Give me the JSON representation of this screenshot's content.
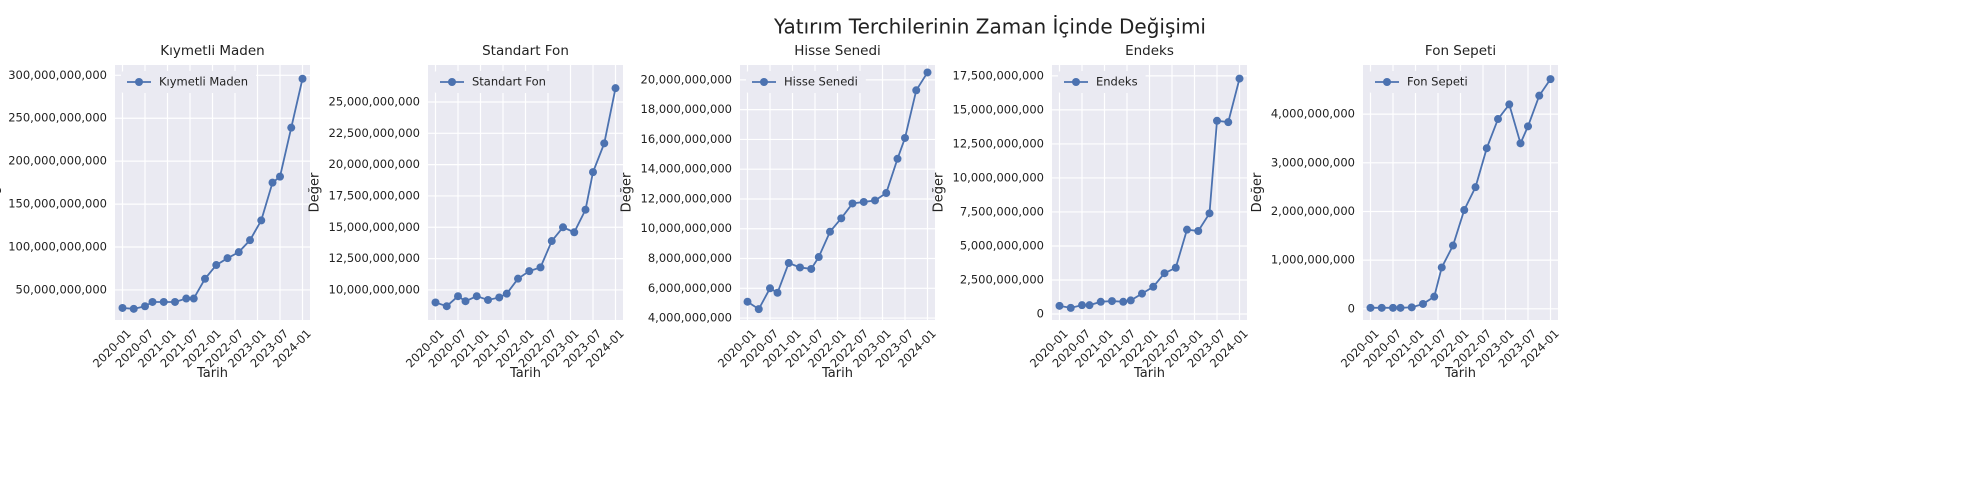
{
  "title": "Yatırım Terchilerinin Zaman İçinde Değişimi",
  "chart_data": [
    {
      "type": "line",
      "title": "Kıymetli Maden",
      "xlabel": "Tarih",
      "ylabel": "Değer",
      "legend": "upper left",
      "grid": true,
      "x": [
        "2020-01",
        "2020-04",
        "2020-07",
        "2020-09",
        "2020-12",
        "2021-03",
        "2021-06",
        "2021-08",
        "2021-11",
        "2022-02",
        "2022-05",
        "2022-08",
        "2022-11",
        "2023-02",
        "2023-05",
        "2023-07",
        "2023-10",
        "2024-01"
      ],
      "xlim": [
        "2019-11",
        "2024-03"
      ],
      "xticks": [
        "2020-01",
        "2020-07",
        "2021-01",
        "2021-07",
        "2022-01",
        "2022-07",
        "2023-01",
        "2023-07",
        "2024-01"
      ],
      "ylim": [
        15000000000,
        312000000000
      ],
      "yticks": [
        {
          "value": 50000000000,
          "label": "50,000,000,000"
        },
        {
          "value": 100000000000,
          "label": "100,000,000,000"
        },
        {
          "value": 150000000000,
          "label": "150,000,000,000"
        },
        {
          "value": 200000000000,
          "label": "200,000,000,000"
        },
        {
          "value": 250000000000,
          "label": "250,000,000,000"
        },
        {
          "value": 300000000000,
          "label": "300,000,000,000"
        }
      ],
      "series": [
        {
          "name": "Kıymetli Maden",
          "color": "#4c72b0",
          "values": [
            29000000000,
            28000000000,
            31000000000,
            36000000000,
            36000000000,
            36000000000,
            40000000000,
            40000000000,
            63000000000,
            79000000000,
            87000000000,
            94000000000,
            108000000000,
            131000000000,
            175000000000,
            182000000000,
            239000000000,
            296000000000
          ]
        }
      ]
    },
    {
      "type": "line",
      "title": "Standart Fon",
      "xlabel": "Tarih",
      "ylabel": "Değer",
      "legend": "upper left",
      "grid": true,
      "x": [
        "2020-01",
        "2020-04",
        "2020-07",
        "2020-09",
        "2020-12",
        "2021-03",
        "2021-06",
        "2021-08",
        "2021-11",
        "2022-02",
        "2022-05",
        "2022-08",
        "2022-11",
        "2023-02",
        "2023-05",
        "2023-07",
        "2023-10",
        "2024-01"
      ],
      "xlim": [
        "2019-11",
        "2024-03"
      ],
      "xticks": [
        "2020-01",
        "2020-07",
        "2021-01",
        "2021-07",
        "2022-01",
        "2022-07",
        "2023-01",
        "2023-07",
        "2024-01"
      ],
      "ylim": [
        7600000000,
        27950000000
      ],
      "yticks": [
        {
          "value": 10000000000,
          "label": "10,000,000,000"
        },
        {
          "value": 12500000000,
          "label": "12,500,000,000"
        },
        {
          "value": 15000000000,
          "label": "15,000,000,000"
        },
        {
          "value": 17500000000,
          "label": "17,500,000,000"
        },
        {
          "value": 20000000000,
          "label": "20,000,000,000"
        },
        {
          "value": 22500000000,
          "label": "22,500,000,000"
        },
        {
          "value": 25000000000,
          "label": "25,000,000,000"
        }
      ],
      "series": [
        {
          "name": "Standart Fon",
          "color": "#4c72b0",
          "values": [
            9000000000,
            8700000000,
            9500000000,
            9100000000,
            9500000000,
            9200000000,
            9400000000,
            9700000000,
            10900000000,
            11500000000,
            11800000000,
            13900000000,
            15000000000,
            14600000000,
            16400000000,
            19400000000,
            21700000000,
            26100000000
          ]
        }
      ]
    },
    {
      "type": "line",
      "title": "Hisse Senedi",
      "xlabel": "Tarih",
      "ylabel": "Değer",
      "legend": "upper left",
      "grid": true,
      "x": [
        "2020-01",
        "2020-04",
        "2020-07",
        "2020-09",
        "2020-12",
        "2021-03",
        "2021-06",
        "2021-08",
        "2021-11",
        "2022-02",
        "2022-05",
        "2022-08",
        "2022-11",
        "2023-02",
        "2023-05",
        "2023-07",
        "2023-10",
        "2024-01"
      ],
      "xlim": [
        "2019-11",
        "2024-03"
      ],
      "xticks": [
        "2020-01",
        "2020-07",
        "2021-01",
        "2021-07",
        "2022-01",
        "2022-07",
        "2023-01",
        "2023-07",
        "2024-01"
      ],
      "ylim": [
        3870000000,
        21000000000
      ],
      "yticks": [
        {
          "value": 4000000000,
          "label": "4,000,000,000"
        },
        {
          "value": 6000000000,
          "label": "6,000,000,000"
        },
        {
          "value": 8000000000,
          "label": "8,000,000,000"
        },
        {
          "value": 10000000000,
          "label": "10,000,000,000"
        },
        {
          "value": 12000000000,
          "label": "12,000,000,000"
        },
        {
          "value": 14000000000,
          "label": "14,000,000,000"
        },
        {
          "value": 16000000000,
          "label": "16,000,000,000"
        },
        {
          "value": 18000000000,
          "label": "18,000,000,000"
        },
        {
          "value": 20000000000,
          "label": "20,000,000,000"
        }
      ],
      "series": [
        {
          "name": "Hisse Senedi",
          "color": "#4c72b0",
          "values": [
            5100000000,
            4600000000,
            6000000000,
            5700000000,
            7700000000,
            7400000000,
            7300000000,
            8100000000,
            9800000000,
            10700000000,
            11700000000,
            11800000000,
            11900000000,
            12400000000,
            14700000000,
            16100000000,
            19300000000,
            20500000000
          ]
        }
      ]
    },
    {
      "type": "line",
      "title": "Endeks",
      "xlabel": "Tarih",
      "ylabel": "Değer",
      "legend": "upper left",
      "grid": true,
      "x": [
        "2020-01",
        "2020-04",
        "2020-07",
        "2020-09",
        "2020-12",
        "2021-03",
        "2021-06",
        "2021-08",
        "2021-11",
        "2022-02",
        "2022-05",
        "2022-08",
        "2022-11",
        "2023-02",
        "2023-05",
        "2023-07",
        "2023-10",
        "2024-01"
      ],
      "xlim": [
        "2019-11",
        "2024-03"
      ],
      "xticks": [
        "2020-01",
        "2020-07",
        "2021-01",
        "2021-07",
        "2022-01",
        "2022-07",
        "2023-01",
        "2023-07",
        "2024-01"
      ],
      "ylim": [
        -440000000,
        18300000000
      ],
      "yticks": [
        0,
        {
          "value": 2500000000,
          "label": "2,500,000,000"
        },
        {
          "value": 5000000000,
          "label": "5,000,000,000"
        },
        {
          "value": 7500000000,
          "label": "7,500,000,000"
        },
        {
          "value": 10000000000,
          "label": "10,000,000,000"
        },
        {
          "value": 12500000000,
          "label": "12,500,000,000"
        },
        {
          "value": 15000000000,
          "label": "15,000,000,000"
        },
        {
          "value": 17500000000,
          "label": "17,500,000,000"
        }
      ],
      "series": [
        {
          "name": "Endeks",
          "color": "#4c72b0",
          "values": [
            600000000,
            450000000,
            650000000,
            650000000,
            900000000,
            950000000,
            900000000,
            1000000000,
            1500000000,
            2000000000,
            3000000000,
            3400000000,
            6200000000,
            6100000000,
            7400000000,
            14200000000,
            14100000000,
            17300000000
          ]
        }
      ]
    },
    {
      "type": "line",
      "title": "Fon Sepeti",
      "xlabel": "Tarih",
      "ylabel": "Değer",
      "legend": "upper left",
      "grid": true,
      "x": [
        "2020-01",
        "2020-04",
        "2020-07",
        "2020-09",
        "2020-12",
        "2021-03",
        "2021-06",
        "2021-08",
        "2021-11",
        "2022-02",
        "2022-05",
        "2022-08",
        "2022-11",
        "2023-02",
        "2023-05",
        "2023-07",
        "2023-10",
        "2024-01"
      ],
      "xlim": [
        "2019-11",
        "2024-03"
      ],
      "xticks": [
        "2020-01",
        "2020-07",
        "2021-01",
        "2021-07",
        "2022-01",
        "2022-07",
        "2023-01",
        "2023-07",
        "2024-01"
      ],
      "ylim": [
        -230000000,
        5010000000
      ],
      "yticks": [
        0,
        {
          "value": 1000000000,
          "label": "1,000,000,000"
        },
        {
          "value": 2000000000,
          "label": "2,000,000,000"
        },
        {
          "value": 3000000000,
          "label": "3,000,000,000"
        },
        {
          "value": 4000000000,
          "label": "4,000,000,000"
        }
      ],
      "series": [
        {
          "name": "Fon Sepeti",
          "color": "#4c72b0",
          "values": [
            20000000,
            20000000,
            20000000,
            20000000,
            30000000,
            100000000,
            250000000,
            850000000,
            1300000000,
            2030000000,
            2500000000,
            3300000000,
            3900000000,
            4200000000,
            3400000000,
            3750000000,
            4380000000,
            4720000000
          ]
        }
      ]
    }
  ]
}
